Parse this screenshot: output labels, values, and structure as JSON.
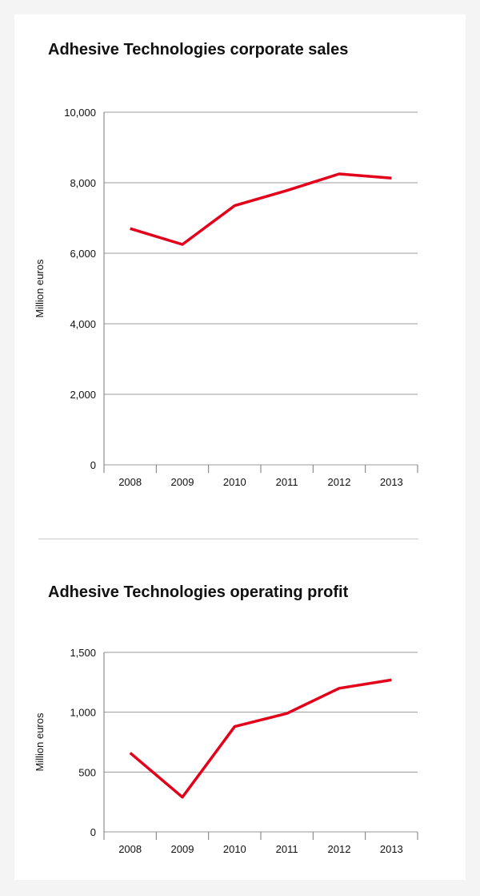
{
  "chart_data": [
    {
      "type": "line",
      "title": "Adhesive Technologies corporate sales",
      "xlabel": "",
      "ylabel": "Million euros",
      "categories": [
        "2008",
        "2009",
        "2010",
        "2011",
        "2012",
        "2013"
      ],
      "values": [
        6700,
        6250,
        7350,
        7780,
        8250,
        8130
      ],
      "ylim": [
        0,
        10000
      ],
      "yticks": [
        0,
        2000,
        4000,
        6000,
        8000,
        10000
      ],
      "ytick_labels": [
        "0",
        "2,000",
        "4,000",
        "6,000",
        "8,000",
        "10,000"
      ],
      "grid": true,
      "line_color": "#e2001a"
    },
    {
      "type": "line",
      "title": "Adhesive Technologies operating profit",
      "xlabel": "",
      "ylabel": "Million euros",
      "categories": [
        "2008",
        "2009",
        "2010",
        "2011",
        "2012",
        "2013"
      ],
      "values": [
        660,
        290,
        880,
        990,
        1200,
        1270
      ],
      "ylim": [
        0,
        1500
      ],
      "yticks": [
        0,
        500,
        1000,
        1500
      ],
      "ytick_labels": [
        "0",
        "500",
        "1,000",
        "1,500"
      ],
      "grid": true,
      "line_color": "#e2001a"
    }
  ]
}
